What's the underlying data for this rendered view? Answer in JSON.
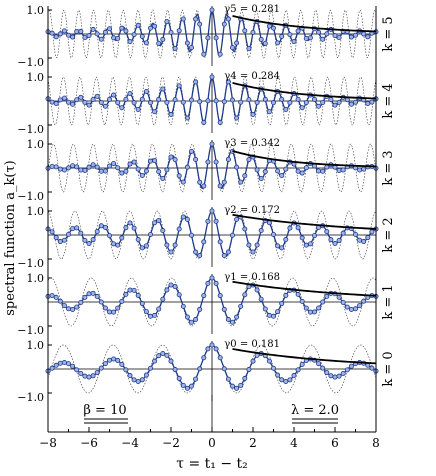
{
  "chart_data": {
    "type": "line",
    "ylabel": "spectral function a_k(τ)",
    "xlabel": "τ = t₁ − t₂",
    "xlim": [
      -8,
      8
    ],
    "ylim": [
      -1,
      1
    ],
    "x_ticks": [
      -8,
      -6,
      -4,
      -2,
      0,
      2,
      4,
      6,
      8
    ],
    "y_tick_labels": [
      "1.0",
      "−1.0"
    ],
    "series_styles": {
      "dashed": "dotted thin line, undamped cosine",
      "solid_markers": "solid blue line with open-circle markers, damped",
      "envelope": "solid black decay fit on τ > 0"
    },
    "annotations": {
      "beta": "β = 10",
      "lambda": "λ = 2.0"
    },
    "panels": [
      {
        "label": "k = 5",
        "gamma_label": "γ5 = 0.281",
        "gamma": 0.281,
        "omega": 8.7
      },
      {
        "label": "k = 4",
        "gamma_label": "γ4 = 0.284",
        "gamma": 0.284,
        "omega": 7.8
      },
      {
        "label": "k = 3",
        "gamma_label": "γ3 = 0.342",
        "gamma": 0.342,
        "omega": 6.5
      },
      {
        "label": "k = 2",
        "gamma_label": "γ2 = 0.172",
        "gamma": 0.172,
        "omega": 4.7
      },
      {
        "label": "k = 1",
        "gamma_label": "γ1 = 0.168",
        "gamma": 0.168,
        "omega": 3.2
      },
      {
        "label": "k = 0",
        "gamma_label": "γ0 = 0.181",
        "gamma": 0.181,
        "omega": 2.6
      }
    ],
    "colors": {
      "series": "#1f3a8a",
      "marker_fill": "#9fb3e8",
      "axis": "#000000"
    }
  }
}
